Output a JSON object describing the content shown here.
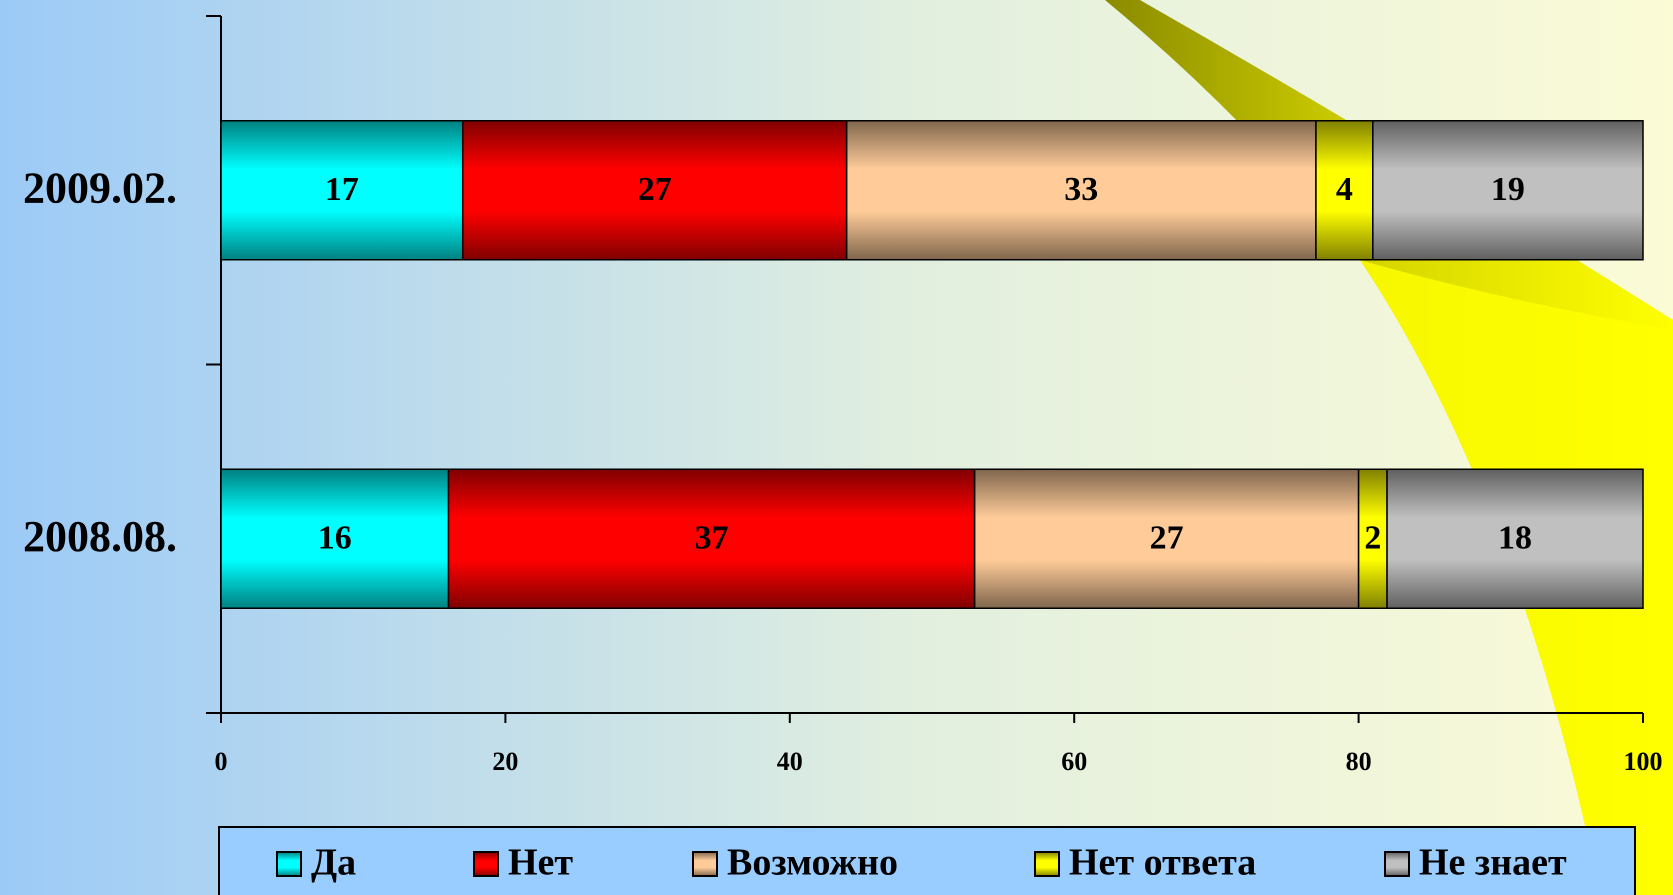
{
  "chart_data": {
    "type": "stacked-horizontal-bar",
    "categories": [
      "2009.02.",
      "2008.08."
    ],
    "series": [
      {
        "name": "Да",
        "color": "#00ffff",
        "values": [
          17,
          16
        ]
      },
      {
        "name": "Нет",
        "color": "#ff0000",
        "values": [
          27,
          37
        ]
      },
      {
        "name": "Возможно",
        "color": "#ffcc99",
        "values": [
          33,
          27
        ]
      },
      {
        "name": "Нет ответа",
        "color": "#ffff00",
        "values": [
          4,
          2
        ]
      },
      {
        "name": "Не знает",
        "color": "#c0c0c0",
        "values": [
          19,
          18
        ]
      }
    ],
    "xlim": [
      0,
      100
    ],
    "xticks": [
      0,
      20,
      40,
      60,
      80,
      100
    ],
    "legend": "bottom"
  }
}
